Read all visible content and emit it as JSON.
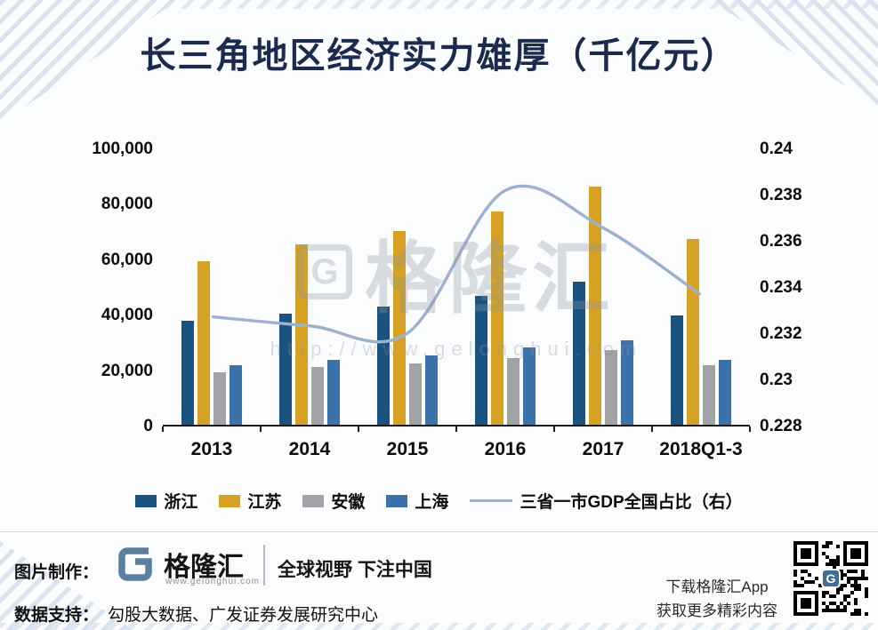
{
  "title": "长三角地区经济实力雄厚（千亿元）",
  "watermark": {
    "brand": "格隆汇",
    "logo_letter": "G",
    "url": "http://www.gelonghui.com"
  },
  "chart_data": {
    "type": "bar",
    "subtype": "grouped bars with secondary-axis line",
    "categories": [
      "2013",
      "2014",
      "2015",
      "2016",
      "2017",
      "2018Q1-3"
    ],
    "series": [
      {
        "name": "浙江",
        "type": "bar",
        "axis": "left",
        "color": "#1a5380",
        "values": [
          37500,
          40000,
          42500,
          46500,
          51500,
          39500
        ]
      },
      {
        "name": "江苏",
        "type": "bar",
        "axis": "left",
        "color": "#d7a223",
        "values": [
          59000,
          65000,
          70000,
          77000,
          86000,
          67000
        ]
      },
      {
        "name": "安徽",
        "type": "bar",
        "axis": "left",
        "color": "#a0a2a5",
        "values": [
          19000,
          21000,
          22000,
          24000,
          27000,
          21500
        ]
      },
      {
        "name": "上海",
        "type": "bar",
        "axis": "left",
        "color": "#3c72aa",
        "values": [
          21500,
          23500,
          25000,
          28000,
          30500,
          23500
        ]
      },
      {
        "name": "三省一市GDP全国占比（右）",
        "type": "line",
        "axis": "right",
        "color": "#9fb2cd",
        "values": [
          0.2327,
          0.2323,
          0.232,
          0.2382,
          0.2366,
          0.2337
        ]
      }
    ],
    "left_axis": {
      "min": 0,
      "max": 100000,
      "ticks": [
        "100,000",
        "80,000",
        "60,000",
        "40,000",
        "20,000",
        "0"
      ]
    },
    "right_axis": {
      "min": 0.228,
      "max": 0.24,
      "ticks": [
        "0.24",
        "0.238",
        "0.236",
        "0.234",
        "0.232",
        "0.23",
        "0.228"
      ]
    },
    "grid": false,
    "legend_position": "bottom"
  },
  "footer": {
    "made_by_label": "图片制作：",
    "brand": "格隆汇",
    "brand_site": "www.gelonghui.com",
    "slogan": "全球视野 下注中国",
    "data_support_label": "数据支持：",
    "data_support_text": "勾股大数据、广发证券发展研究中心",
    "qr_caption_line1": "下载格隆汇App",
    "qr_caption_line2": "获取更多精彩内容",
    "qr_center_letter": "G"
  }
}
